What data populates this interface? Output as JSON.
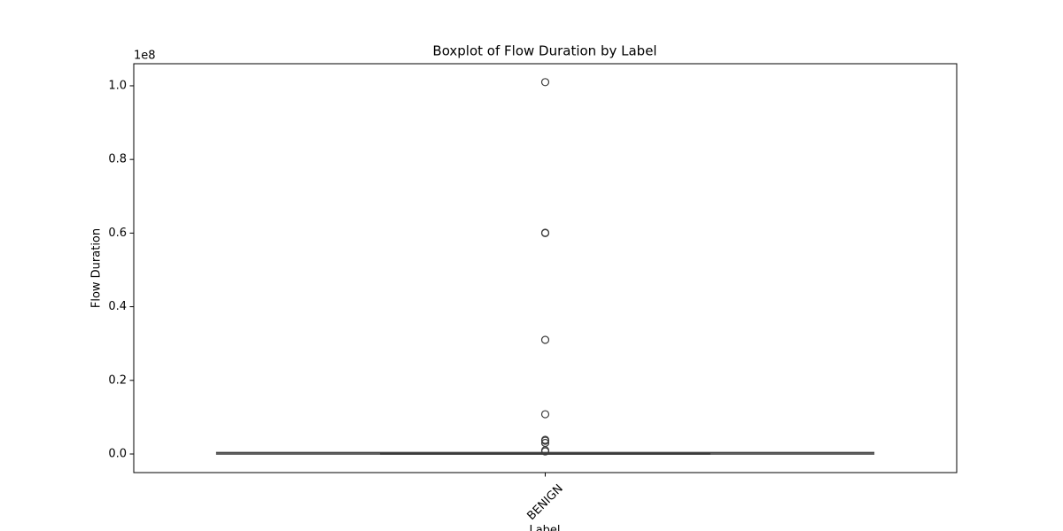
{
  "chart_data": {
    "type": "box",
    "title": "Boxplot of Flow Duration by Label",
    "x_label": "Label",
    "y_label": "Flow Duration",
    "y_offset_label": "1e8",
    "categories": [
      "BENIGN"
    ],
    "color": "#1f77b4",
    "line_color": "#3d3d3d",
    "boxes": [
      {
        "whislo": 1,
        "q1": 150,
        "med": 30000,
        "q3": 200000,
        "whishi": 400000,
        "fliers": [
          101000000,
          60100000,
          60000000,
          31000000,
          10800000,
          3850000,
          3600000,
          3000000,
          1000000,
          700000
        ]
      }
    ],
    "ylim": [
      -5050000,
      106000000
    ],
    "yticks": [
      {
        "value": 0,
        "label": "0.0"
      },
      {
        "value": 20000000,
        "label": "0.2"
      },
      {
        "value": 40000000,
        "label": "0.4"
      },
      {
        "value": 60000000,
        "label": "0.6"
      },
      {
        "value": 80000000,
        "label": "0.8"
      },
      {
        "value": 100000000,
        "label": "1.0"
      }
    ],
    "grid": false
  }
}
